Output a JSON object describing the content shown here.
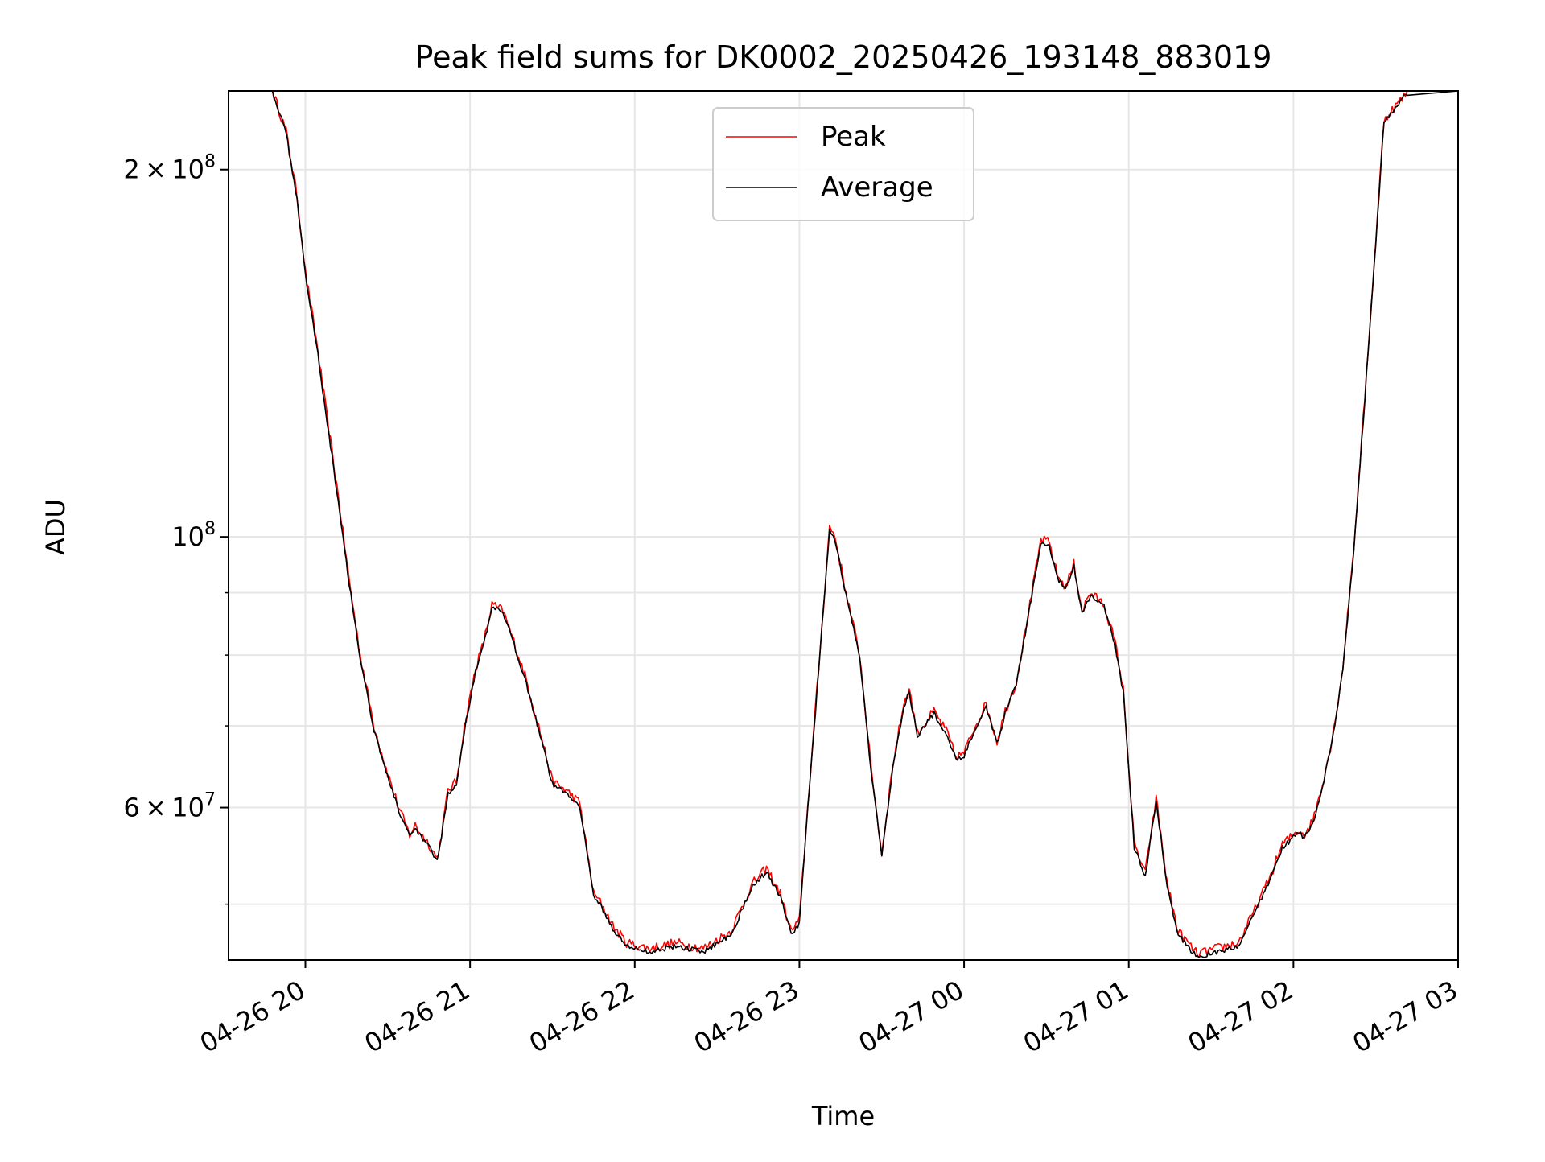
{
  "chart_data": {
    "type": "line",
    "title": "Peak field sums for DK0002_20250426_193148_883019",
    "xlabel": "Time",
    "ylabel": "ADU",
    "x_range": [
      "2025-04-26T19:32",
      "2025-04-27T03:00"
    ],
    "x_tick_labels": [
      "04-26 20",
      "04-26 21",
      "04-26 22",
      "04-26 23",
      "04-27 00",
      "04-27 01",
      "04-27 02",
      "04-27 03"
    ],
    "x_tick_times": [
      "2025-04-26T20:00",
      "2025-04-26T21:00",
      "2025-04-26T22:00",
      "2025-04-26T23:00",
      "2025-04-27T00:00",
      "2025-04-27T01:00",
      "2025-04-27T02:00",
      "2025-04-27T03:00"
    ],
    "y_scale": "log",
    "ylim": [
      45000000,
      232000000
    ],
    "y_major_ticks": [
      {
        "value": 200000000,
        "mantissa": "2",
        "exponent": "8"
      },
      {
        "value": 100000000,
        "mantissa": "",
        "exponent": "8"
      },
      {
        "value": 60000000,
        "mantissa": "6",
        "exponent": "7"
      }
    ],
    "y_minor_ticks": [
      50000000,
      70000000,
      80000000,
      90000000
    ],
    "grid": true,
    "legend_position": "top-center",
    "series": [
      {
        "name": "Peak",
        "color": "#ff0000",
        "jitter_pct": 0.9,
        "x": [
          "2025-04-26T19:32",
          "2025-04-26T19:48",
          "2025-04-26T19:53",
          "2025-04-26T19:57",
          "2025-04-26T20:00",
          "2025-04-26T20:04",
          "2025-04-26T20:08",
          "2025-04-26T20:12",
          "2025-04-26T20:16",
          "2025-04-26T20:20",
          "2025-04-26T20:25",
          "2025-04-26T20:30",
          "2025-04-26T20:34",
          "2025-04-26T20:38",
          "2025-04-26T20:40",
          "2025-04-26T20:45",
          "2025-04-26T20:48",
          "2025-04-26T20:49",
          "2025-04-26T20:52",
          "2025-04-26T20:55",
          "2025-04-26T20:58",
          "2025-04-26T21:02",
          "2025-04-26T21:05",
          "2025-04-26T21:08",
          "2025-04-26T21:12",
          "2025-04-26T21:16",
          "2025-04-26T21:20",
          "2025-04-26T21:25",
          "2025-04-26T21:30",
          "2025-04-26T21:35",
          "2025-04-26T21:40",
          "2025-04-26T21:45",
          "2025-04-26T21:48",
          "2025-04-26T21:52",
          "2025-04-26T21:57",
          "2025-04-26T22:05",
          "2025-04-26T22:15",
          "2025-04-26T22:25",
          "2025-04-26T22:35",
          "2025-04-26T22:43",
          "2025-04-26T22:48",
          "2025-04-26T22:53",
          "2025-04-26T22:57",
          "2025-04-26T23:00",
          "2025-04-26T23:03",
          "2025-04-26T23:07",
          "2025-04-26T23:11",
          "2025-04-26T23:13",
          "2025-04-26T23:17",
          "2025-04-26T23:22",
          "2025-04-26T23:26",
          "2025-04-26T23:30",
          "2025-04-26T23:34",
          "2025-04-26T23:38",
          "2025-04-26T23:40",
          "2025-04-26T23:43",
          "2025-04-26T23:45",
          "2025-04-26T23:49",
          "2025-04-26T23:54",
          "2025-04-26T23:57",
          "2025-04-27T00:00",
          "2025-04-27T00:04",
          "2025-04-27T00:08",
          "2025-04-27T00:12",
          "2025-04-27T00:15",
          "2025-04-27T00:19",
          "2025-04-27T00:24",
          "2025-04-27T00:28",
          "2025-04-27T00:31",
          "2025-04-27T00:34",
          "2025-04-27T00:37",
          "2025-04-27T00:40",
          "2025-04-27T00:43",
          "2025-04-27T00:46",
          "2025-04-27T00:51",
          "2025-04-27T00:55",
          "2025-04-27T00:58",
          "2025-04-27T01:02",
          "2025-04-27T01:06",
          "2025-04-27T01:08",
          "2025-04-27T01:10",
          "2025-04-27T01:14",
          "2025-04-27T01:18",
          "2025-04-27T01:25",
          "2025-04-27T01:32",
          "2025-04-27T01:40",
          "2025-04-27T01:46",
          "2025-04-27T01:52",
          "2025-04-27T01:56",
          "2025-04-27T02:00",
          "2025-04-27T02:02",
          "2025-04-27T02:04",
          "2025-04-27T02:07",
          "2025-04-27T02:10",
          "2025-04-27T02:14",
          "2025-04-27T02:18",
          "2025-04-27T02:22",
          "2025-04-27T02:26",
          "2025-04-27T02:30",
          "2025-04-27T02:33",
          "2025-04-27T02:42"
        ],
        "values": [
          232000000,
          232000000,
          215000000,
          190000000,
          165000000,
          145000000,
          125000000,
          108000000,
          92000000,
          80000000,
          70000000,
          64000000,
          60000000,
          57000000,
          58000000,
          56000000,
          54500000,
          56000000,
          62000000,
          63000000,
          70000000,
          78000000,
          82000000,
          88000000,
          87000000,
          82000000,
          77000000,
          70000000,
          63000000,
          62000000,
          60500000,
          51000000,
          50000000,
          48000000,
          46500000,
          46000000,
          46500000,
          46000000,
          47500000,
          52000000,
          53500000,
          51000000,
          47500000,
          48500000,
          60000000,
          78000000,
          102000000,
          100000000,
          90000000,
          80000000,
          65000000,
          55000000,
          65000000,
          73000000,
          75000000,
          69000000,
          70000000,
          72000000,
          69000000,
          66000000,
          66500000,
          70000000,
          73000000,
          68000000,
          72000000,
          76000000,
          88000000,
          99500000,
          99000000,
          93000000,
          91000000,
          95000000,
          87000000,
          90000000,
          88000000,
          82000000,
          75000000,
          56000000,
          53000000,
          57000000,
          61000000,
          52000000,
          47500000,
          45500000,
          46000000,
          46500000,
          49500000,
          53000000,
          56000000,
          57000000,
          57500000,
          57000000,
          58500000,
          62000000,
          68000000,
          78000000,
          98000000,
          130000000,
          175000000,
          220000000,
          232000000
        ]
      },
      {
        "name": "Average",
        "color": "#000000",
        "jitter_pct": 0.5,
        "x": [
          "2025-04-26T19:32",
          "2025-04-26T19:48",
          "2025-04-26T19:53",
          "2025-04-26T19:57",
          "2025-04-26T20:00",
          "2025-04-26T20:04",
          "2025-04-26T20:08",
          "2025-04-26T20:12",
          "2025-04-26T20:16",
          "2025-04-26T20:20",
          "2025-04-26T20:25",
          "2025-04-26T20:30",
          "2025-04-26T20:34",
          "2025-04-26T20:38",
          "2025-04-26T20:40",
          "2025-04-26T20:45",
          "2025-04-26T20:48",
          "2025-04-26T20:49",
          "2025-04-26T20:52",
          "2025-04-26T20:55",
          "2025-04-26T20:58",
          "2025-04-26T21:02",
          "2025-04-26T21:05",
          "2025-04-26T21:08",
          "2025-04-26T21:12",
          "2025-04-26T21:16",
          "2025-04-26T21:20",
          "2025-04-26T21:25",
          "2025-04-26T21:30",
          "2025-04-26T21:35",
          "2025-04-26T21:40",
          "2025-04-26T21:45",
          "2025-04-26T21:48",
          "2025-04-26T21:52",
          "2025-04-26T21:57",
          "2025-04-26T22:05",
          "2025-04-26T22:15",
          "2025-04-26T22:25",
          "2025-04-26T22:35",
          "2025-04-26T22:43",
          "2025-04-26T22:48",
          "2025-04-26T22:53",
          "2025-04-26T22:57",
          "2025-04-26T23:00",
          "2025-04-26T23:03",
          "2025-04-26T23:07",
          "2025-04-26T23:11",
          "2025-04-26T23:13",
          "2025-04-26T23:17",
          "2025-04-26T23:22",
          "2025-04-26T23:26",
          "2025-04-26T23:30",
          "2025-04-26T23:34",
          "2025-04-26T23:38",
          "2025-04-26T23:40",
          "2025-04-26T23:43",
          "2025-04-26T23:45",
          "2025-04-26T23:49",
          "2025-04-26T23:54",
          "2025-04-26T23:57",
          "2025-04-27T00:00",
          "2025-04-27T00:04",
          "2025-04-27T00:08",
          "2025-04-27T00:12",
          "2025-04-27T00:15",
          "2025-04-27T00:19",
          "2025-04-27T00:24",
          "2025-04-27T00:28",
          "2025-04-27T00:31",
          "2025-04-27T00:34",
          "2025-04-27T00:37",
          "2025-04-27T00:40",
          "2025-04-27T00:43",
          "2025-04-27T00:46",
          "2025-04-27T00:51",
          "2025-04-27T00:55",
          "2025-04-27T00:58",
          "2025-04-27T01:02",
          "2025-04-27T01:06",
          "2025-04-27T01:08",
          "2025-04-27T01:10",
          "2025-04-27T01:14",
          "2025-04-27T01:18",
          "2025-04-27T01:25",
          "2025-04-27T01:32",
          "2025-04-27T01:40",
          "2025-04-27T01:46",
          "2025-04-27T01:52",
          "2025-04-27T01:56",
          "2025-04-27T02:00",
          "2025-04-27T02:02",
          "2025-04-27T02:04",
          "2025-04-27T02:07",
          "2025-04-27T02:10",
          "2025-04-27T02:14",
          "2025-04-27T02:18",
          "2025-04-27T02:22",
          "2025-04-27T02:26",
          "2025-04-27T02:30",
          "2025-04-27T02:33",
          "2025-04-27T02:42"
        ],
        "values": [
          232000000,
          232000000,
          214000000,
          189000000,
          164000000,
          144000000,
          124000000,
          107000000,
          91500000,
          79500000,
          69500000,
          63600000,
          59700000,
          56700000,
          57600000,
          55700000,
          54200000,
          55700000,
          61600000,
          62600000,
          69600000,
          77600000,
          81600000,
          87500000,
          86600000,
          81600000,
          76600000,
          69600000,
          62700000,
          61700000,
          60200000,
          50800000,
          49700000,
          47700000,
          46200000,
          45700000,
          46200000,
          45700000,
          47200000,
          51700000,
          53200000,
          50700000,
          47200000,
          48200000,
          59700000,
          77600000,
          101500000,
          99500000,
          89600000,
          79600000,
          64700000,
          54700000,
          64700000,
          72600000,
          74600000,
          68700000,
          69700000,
          71600000,
          68700000,
          65700000,
          66200000,
          69700000,
          72600000,
          67700000,
          71600000,
          75600000,
          87600000,
          99000000,
          98500000,
          92600000,
          90600000,
          94500000,
          86600000,
          89600000,
          87600000,
          81600000,
          74600000,
          55700000,
          52700000,
          56700000,
          60700000,
          51700000,
          47200000,
          45200000,
          45700000,
          46200000,
          49200000,
          52700000,
          55700000,
          56700000,
          57200000,
          56700000,
          58200000,
          61700000,
          67700000,
          77600000,
          97500000,
          129500000,
          174000000,
          219000000,
          232000000
        ]
      }
    ]
  }
}
